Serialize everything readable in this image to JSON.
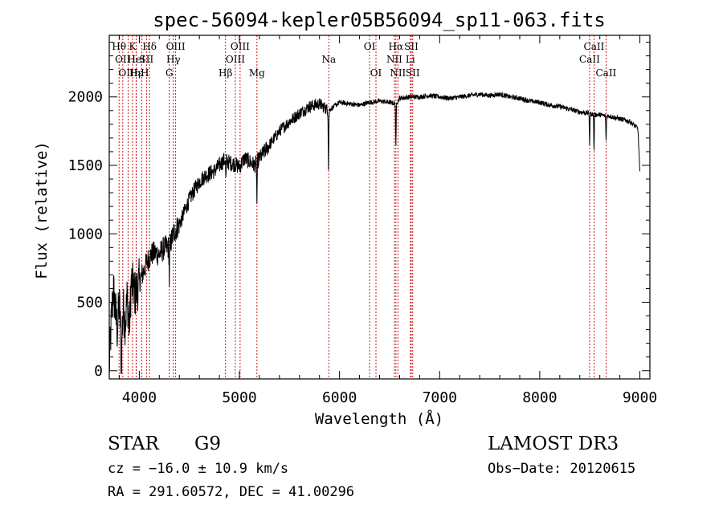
{
  "chart_data": {
    "type": "line",
    "title": "spec-56094-kepler05B56094_sp11-063.fits",
    "xlabel": "Wavelength (Å)",
    "ylabel": "Flux (relative)",
    "xlim": [
      3700,
      9100
    ],
    "ylim": [
      -60,
      2450
    ],
    "xticks": [
      4000,
      5000,
      6000,
      7000,
      8000,
      9000
    ],
    "yticks": [
      0,
      500,
      1000,
      1500,
      2000
    ],
    "series": [
      {
        "name": "spectrum",
        "x": [
          3700,
          3720,
          3740,
          3760,
          3780,
          3800,
          3820,
          3840,
          3860,
          3880,
          3900,
          3920,
          3940,
          3960,
          3980,
          4000,
          4040,
          4080,
          4120,
          4160,
          4200,
          4250,
          4300,
          4340,
          4380,
          4420,
          4460,
          4500,
          4550,
          4600,
          4650,
          4700,
          4750,
          4800,
          4850,
          4900,
          4950,
          5000,
          5050,
          5100,
          5150,
          5200,
          5250,
          5300,
          5400,
          5500,
          5600,
          5700,
          5800,
          5890,
          6000,
          6100,
          6200,
          6300,
          6400,
          6500,
          6563,
          6600,
          6700,
          6800,
          6900,
          7000,
          7100,
          7200,
          7300,
          7400,
          7500,
          7600,
          7700,
          7800,
          7900,
          8000,
          8100,
          8200,
          8300,
          8400,
          8498,
          8542,
          8600,
          8662,
          8700,
          8800,
          8900,
          8980,
          9000
        ],
        "values": [
          20,
          350,
          600,
          450,
          300,
          500,
          200,
          450,
          350,
          550,
          300,
          650,
          600,
          560,
          600,
          650,
          720,
          800,
          850,
          860,
          850,
          900,
          900,
          1000,
          1050,
          1100,
          1180,
          1250,
          1320,
          1380,
          1420,
          1440,
          1460,
          1500,
          1540,
          1520,
          1510,
          1490,
          1550,
          1530,
          1500,
          1550,
          1600,
          1650,
          1750,
          1820,
          1880,
          1930,
          1950,
          1900,
          1960,
          1950,
          1940,
          1960,
          1970,
          1960,
          1950,
          1990,
          2000,
          2000,
          2010,
          2000,
          1990,
          2000,
          2010,
          2020,
          2010,
          2020,
          2000,
          1990,
          1970,
          1960,
          1940,
          1930,
          1910,
          1890,
          1880,
          1870,
          1870,
          1860,
          1860,
          1840,
          1820,
          1770,
          1450
        ]
      }
    ],
    "absorption_features": [
      {
        "x": 3820,
        "depth": 600
      },
      {
        "x": 5890,
        "depth": 400
      },
      {
        "x": 6563,
        "depth": 350
      },
      {
        "x": 8498,
        "depth": 250
      },
      {
        "x": 8542,
        "depth": 300
      },
      {
        "x": 8662,
        "depth": 200
      },
      {
        "x": 5175,
        "depth": 300
      },
      {
        "x": 4300,
        "depth": 250
      },
      {
        "x": 4865,
        "depth": 150
      }
    ],
    "spectral_lines": [
      {
        "x": 3798,
        "label": "Hθ",
        "row": 1
      },
      {
        "x": 3835,
        "label": "OII",
        "row": 2
      },
      {
        "x": 3889,
        "label": "OIII",
        "row": 3
      },
      {
        "x": 3933,
        "label": "K",
        "row": 1
      },
      {
        "x": 3968,
        "label": "Hε",
        "row": 3
      },
      {
        "x": 3970,
        "label": "HeI",
        "row": 2
      },
      {
        "x": 4026,
        "label": "ηH",
        "row": 3
      },
      {
        "x": 4072,
        "label": "SII",
        "row": 2
      },
      {
        "x": 4102,
        "label": "Hδ",
        "row": 1
      },
      {
        "x": 4300,
        "label": "G",
        "row": 3
      },
      {
        "x": 4340,
        "label": "Hγ",
        "row": 2
      },
      {
        "x": 4363,
        "label": "OIII",
        "row": 1
      },
      {
        "x": 4861,
        "label": "Hβ",
        "row": 3
      },
      {
        "x": 4959,
        "label": "OIII",
        "row": 2
      },
      {
        "x": 5007,
        "label": "OIII",
        "row": 1
      },
      {
        "x": 5175,
        "label": "Mg",
        "row": 3
      },
      {
        "x": 5893,
        "label": "Na",
        "row": 2
      },
      {
        "x": 6300,
        "label": "OI",
        "row": 1
      },
      {
        "x": 6364,
        "label": "OI",
        "row": 3
      },
      {
        "x": 6548,
        "label": "NII",
        "row": 2
      },
      {
        "x": 6563,
        "label": "Hα",
        "row": 1
      },
      {
        "x": 6583,
        "label": "NII",
        "row": 3
      },
      {
        "x": 6707,
        "label": "Li",
        "row": 2
      },
      {
        "x": 6717,
        "label": "SII",
        "row": 1
      },
      {
        "x": 6731,
        "label": "SII",
        "row": 3
      },
      {
        "x": 8498,
        "label": "CaII",
        "row": 2
      },
      {
        "x": 8542,
        "label": "CaII",
        "row": 1
      },
      {
        "x": 8662,
        "label": "CaII",
        "row": 3
      }
    ]
  },
  "info": {
    "class": "STAR",
    "subclass": "G9",
    "survey": "LAMOST DR3",
    "cz": "cz = −16.0 ± 10.9 km/s",
    "obs_date": "Obs−Date: 20120615",
    "coords": "RA = 291.60572, DEC =  41.00296"
  },
  "colors": {
    "spectrum": "#000000",
    "line_marker": "#cc0000",
    "axes": "#000000"
  }
}
